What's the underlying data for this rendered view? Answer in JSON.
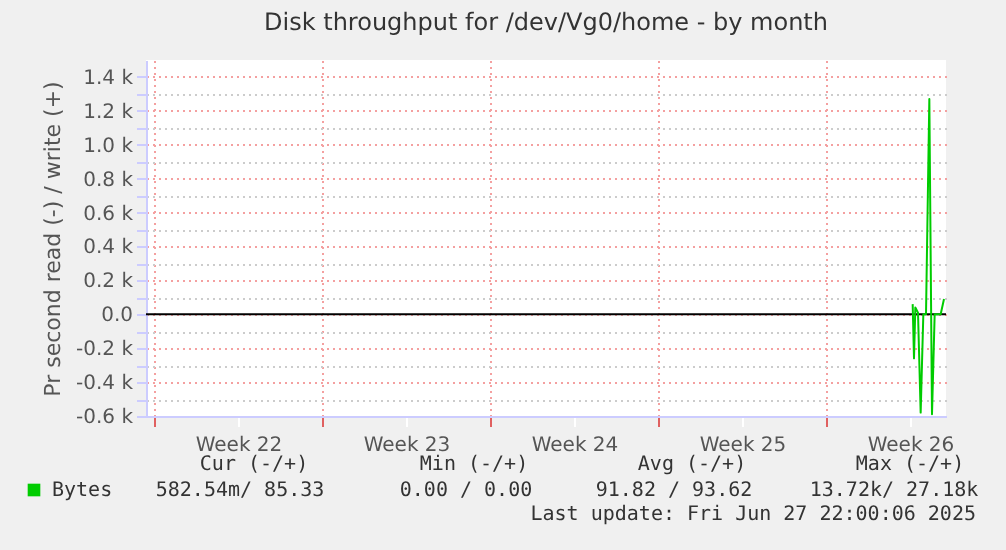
{
  "chart_data": {
    "type": "line",
    "title": "Disk throughput for /dev/Vg0/home - by month",
    "ylabel": "Pr second read (-) / write (+)",
    "x": [
      "2025-06-26T14:40",
      "2025-06-26T16:00",
      "2025-06-26T17:20",
      "2025-06-26T20:00",
      "2025-06-26T22:40",
      "2025-06-27T01:20",
      "2025-06-27T04:00",
      "2025-06-27T07:20",
      "2025-06-27T10:00",
      "2025-06-27T12:40",
      "2025-06-27T18:40",
      "2025-06-27T22:00"
    ],
    "series": [
      {
        "name": "Bytes",
        "color": "#00cc00",
        "values": [
          60,
          -260,
          40,
          10,
          -580,
          0,
          0,
          1270,
          -590,
          0,
          0,
          90
        ]
      }
    ],
    "xlim": [
      "2025-05-25T16:00",
      "2025-06-28T00:00"
    ],
    "xticks": [
      {
        "value": "2025-05-26",
        "label": null
      },
      {
        "value": "2025-05-29T12:00",
        "label": "Week 22"
      },
      {
        "value": "2025-06-02",
        "label": null
      },
      {
        "value": "2025-06-05T12:00",
        "label": "Week 23"
      },
      {
        "value": "2025-06-09",
        "label": null
      },
      {
        "value": "2025-06-12T12:00",
        "label": "Week 24"
      },
      {
        "value": "2025-06-16",
        "label": null
      },
      {
        "value": "2025-06-19T12:00",
        "label": "Week 25"
      },
      {
        "value": "2025-06-23",
        "label": null
      },
      {
        "value": "2025-06-26T12:00",
        "label": "Week 26"
      }
    ],
    "ylim": [
      -600,
      1500
    ],
    "yticks": [
      {
        "value": -600,
        "label": "-0.6 k"
      },
      {
        "value": -500,
        "label": null
      },
      {
        "value": -400,
        "label": "-0.4 k"
      },
      {
        "value": -300,
        "label": null
      },
      {
        "value": -200,
        "label": "-0.2 k"
      },
      {
        "value": -100,
        "label": null
      },
      {
        "value": 0,
        "label": "0.0"
      },
      {
        "value": 100,
        "label": null
      },
      {
        "value": 200,
        "label": "0.2 k"
      },
      {
        "value": 300,
        "label": null
      },
      {
        "value": 400,
        "label": "0.4 k"
      },
      {
        "value": 500,
        "label": null
      },
      {
        "value": 600,
        "label": "0.6 k"
      },
      {
        "value": 700,
        "label": null
      },
      {
        "value": 800,
        "label": "0.8 k"
      },
      {
        "value": 900,
        "label": null
      },
      {
        "value": 1000,
        "label": "1.0 k"
      },
      {
        "value": 1100,
        "label": null
      },
      {
        "value": 1200,
        "label": "1.2 k"
      },
      {
        "value": 1300,
        "label": null
      },
      {
        "value": 1400,
        "label": "1.4 k"
      }
    ],
    "grid": true,
    "legend": "bottom left",
    "marker": "none",
    "line_style": "solid",
    "ref_lines": [
      {
        "axis": "y",
        "value": 0,
        "color": "#000000"
      }
    ],
    "annotations": [
      "Cur (-/+)",
      "Min (-/+)",
      "Avg (-/+)",
      "Max (-/+)",
      "582.54m/  85.33",
      "0.00 /   0.00",
      "91.82 / 93.62",
      "13.72k/ 27.18k",
      "Last update: Fri Jun 27 22:00:06 2025"
    ]
  }
}
